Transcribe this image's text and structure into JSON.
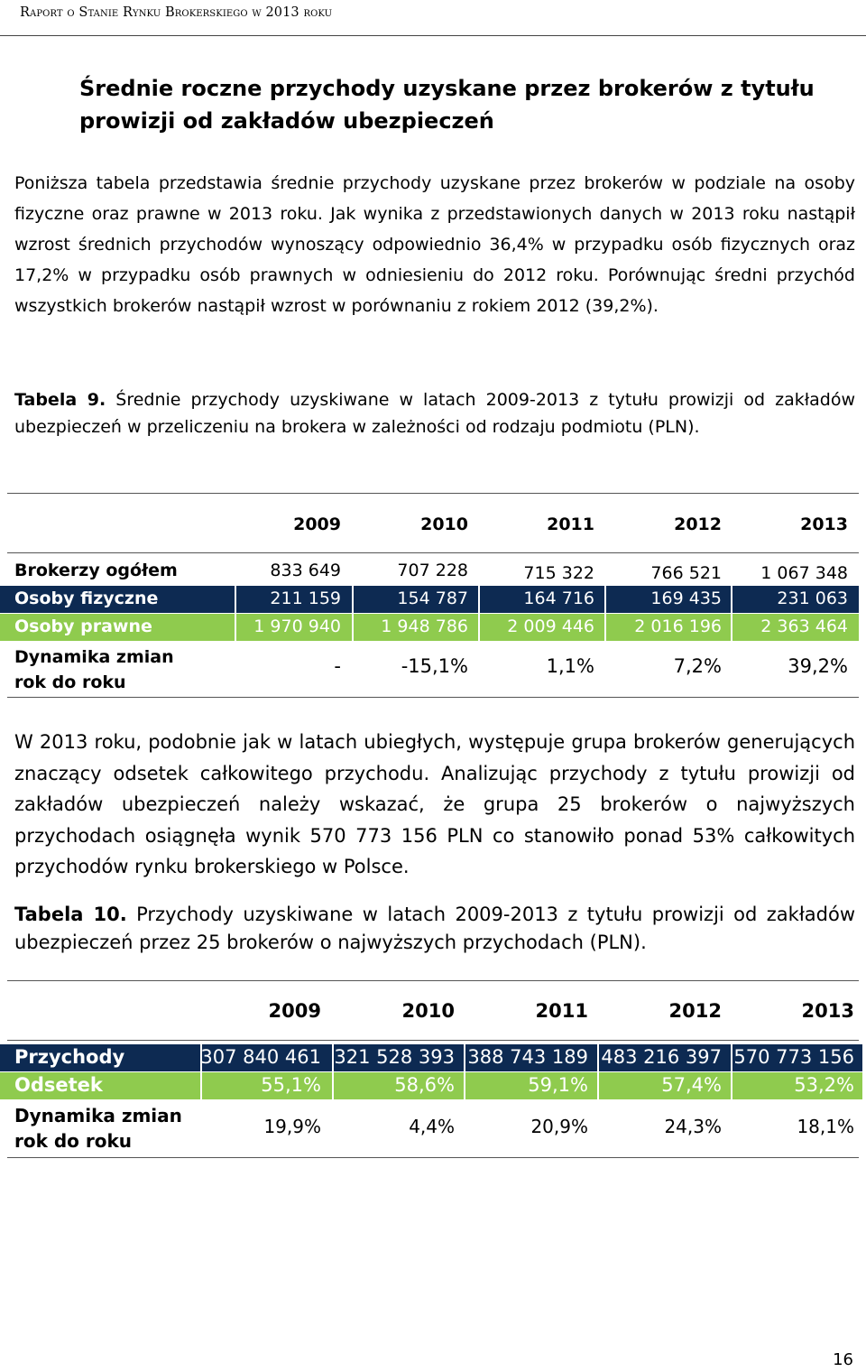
{
  "header": {
    "title": "Raport o Stanie Rynku Brokerskiego w 2013 roku"
  },
  "section": {
    "title": "Średnie roczne przychody uzyskane przez brokerów z tytułu prowizji od zakładów ubezpieczeń"
  },
  "para1": "Poniższa tabela przedstawia średnie przychody uzyskane przez brokerów w podziale na osoby fizyczne oraz prawne w 2013 roku. Jak wynika z przedstawionych danych w 2013 roku nastąpił wzrost średnich przychodów wynoszący odpowiednio 36,4% w przypadku osób fizycznych oraz 17,2% w przypadku osób prawnych w odniesieniu do 2012 roku. Porównując średni przychód wszystkich brokerów nastąpił wzrost w porównaniu z rokiem 2012 (39,2%).",
  "table9": {
    "caption_label": "Tabela 9.",
    "caption_text": " Średnie przychody uzyskiwane w latach 2009-2013 z tytułu prowizji od zakładów ubezpieczeń w przeliczeniu na brokera w zależności od rodzaju podmiotu (PLN).",
    "years": [
      "2009",
      "2010",
      "2011",
      "2012",
      "2013"
    ],
    "rows": [
      {
        "label": "Brokerzy ogółem",
        "values": [
          "833 649",
          "707 228",
          "715 322",
          "766 521",
          "1 067 348"
        ],
        "style": "plain"
      },
      {
        "label": "Osoby fizyczne",
        "values": [
          "211 159",
          "154 787",
          "164 716",
          "169 435",
          "231 063"
        ],
        "style": "navy"
      },
      {
        "label": "Osoby prawne",
        "values": [
          "1 970 940",
          "1 948 786",
          "2 009 446",
          "2 016 196",
          "2 363 464"
        ],
        "style": "green"
      }
    ],
    "dynamics": {
      "label_line1": "Dynamika zmian",
      "label_line2": "rok do roku",
      "values": [
        "-",
        "-15,1%",
        "1,1%",
        "7,2%",
        "39,2%"
      ]
    }
  },
  "para2": "W 2013 roku, podobnie jak w latach ubiegłych, występuje grupa brokerów generujących znaczący odsetek całkowitego przychodu. Analizując przychody z tytułu prowizji od zakładów ubezpieczeń należy wskazać, że grupa 25 brokerów o najwyższych przychodach osiągnęła wynik 570 773 156 PLN co stanowiło ponad 53% całkowitych przychodów rynku brokerskiego w Polsce.",
  "table10": {
    "caption_label": "Tabela 10.",
    "caption_text": " Przychody uzyskiwane w latach 2009-2013 z tytułu prowizji od zakładów ubezpieczeń przez 25 brokerów o najwyższych przychodach (PLN).",
    "years": [
      "2009",
      "2010",
      "2011",
      "2012",
      "2013"
    ],
    "rows": [
      {
        "label": "Przychody",
        "values": [
          "307 840 461",
          "321 528 393",
          "388 743 189",
          "483 216 397",
          "570 773 156"
        ],
        "style": "navy"
      },
      {
        "label": "Odsetek",
        "values": [
          "55,1%",
          "58,6%",
          "59,1%",
          "57,4%",
          "53,2%"
        ],
        "style": "green"
      }
    ],
    "dynamics": {
      "label_line1": "Dynamika zmian",
      "label_line2": "rok do roku",
      "values": [
        "19,9%",
        "4,4%",
        "20,9%",
        "24,3%",
        "18,1%"
      ]
    }
  },
  "page_number": "16"
}
